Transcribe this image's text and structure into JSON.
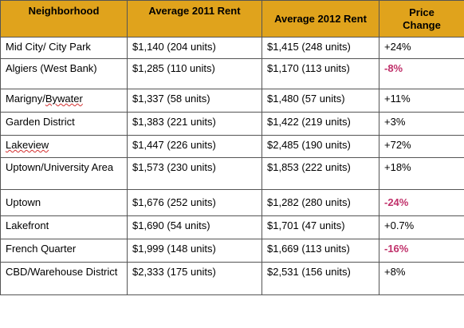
{
  "colors": {
    "header_bg": "#e0a31c",
    "negative_change": "#c0306a",
    "grid": "#555555"
  },
  "headers": {
    "neighborhood": "Neighborhood",
    "rent_2011": "Average 2011 Rent",
    "rent_2012": "Average 2012 Rent",
    "price_change": "Price Change"
  },
  "rows": [
    {
      "neighborhood": "Mid City/ City Park",
      "rent_2011": "$1,140  (204 units)",
      "rent_2012": "$1,415  (248 units)",
      "change": "+24%"
    },
    {
      "neighborhood": "Algiers (West Bank)",
      "rent_2011": "$1,285  (110 units)",
      "rent_2012": "$1,170  (113 units)",
      "change": "-8%"
    },
    {
      "neighborhood_a": "Marigny/",
      "neighborhood_b": "Bywater",
      "rent_2011": "$1,337  (58 units)",
      "rent_2012": "$1,480  (57 units)",
      "change": "+11%"
    },
    {
      "neighborhood": "Garden District",
      "rent_2011": "$1,383  (221 units)",
      "rent_2012": "$1,422  (219 units)",
      "change": "+3%"
    },
    {
      "neighborhood": "Lakeview",
      "rent_2011": "$1,447  (226 units)",
      "rent_2012": "$2,485  (190 units)",
      "change": "+72%"
    },
    {
      "neighborhood": "Uptown/University Area",
      "rent_2011": "$1,573  (230 units)",
      "rent_2012": "$1,853  (222 units)",
      "change": "+18%"
    },
    {
      "neighborhood": "Uptown",
      "rent_2011": "$1,676  (252 units)",
      "rent_2012": "$1,282  (280 units)",
      "change": "-24%"
    },
    {
      "neighborhood": "Lakefront",
      "rent_2011": "$1,690  (54 units)",
      "rent_2012": "$1,701  (47 units)",
      "change": "+0.7%"
    },
    {
      "neighborhood": "French Quarter",
      "rent_2011": "$1,999  (148 units)",
      "rent_2012": "$1,669  (113 units)",
      "change": "-16%"
    },
    {
      "neighborhood": "CBD/Warehouse District",
      "rent_2011": "$2,333  (175 units)",
      "rent_2012": "$2,531  (156 units)",
      "change": "+8%"
    }
  ]
}
